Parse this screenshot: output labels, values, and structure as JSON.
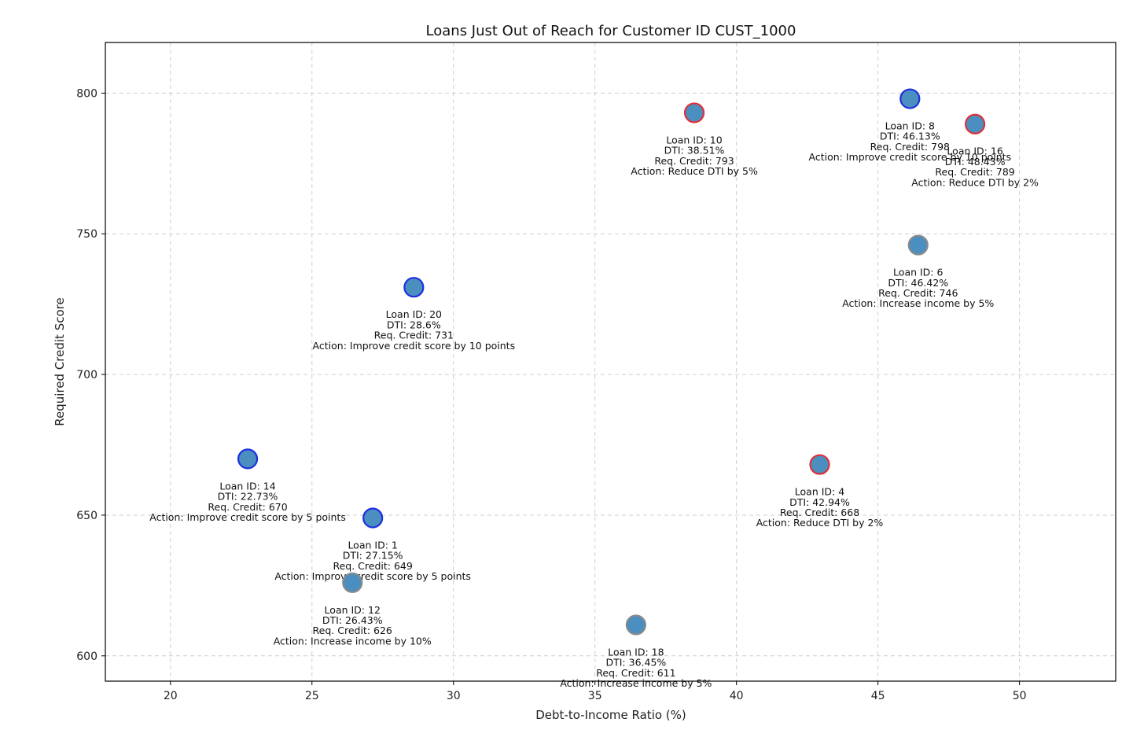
{
  "chart_data": {
    "type": "scatter",
    "title": "Loans Just Out of Reach for Customer ID CUST_1000",
    "xlabel": "Debt-to-Income Ratio (%)",
    "ylabel": "Required Credit Score",
    "xlim": [
      17.7,
      53.4
    ],
    "ylim": [
      591,
      818
    ],
    "xticks": [
      20,
      25,
      30,
      35,
      40,
      45,
      50
    ],
    "yticks": [
      600,
      650,
      700,
      750,
      800
    ],
    "grid": true,
    "colors": {
      "fill": "#4a8fbf",
      "edge_credit": "#1f2fe0",
      "edge_dti": "#e0303a",
      "edge_income": "#8a8a8a"
    },
    "points": [
      {
        "x": 22.73,
        "y": 670,
        "edge": "credit",
        "lines": [
          "Loan ID: 14",
          "DTI: 22.73%",
          "Req. Credit: 670",
          "Action: Improve credit score by 5 points"
        ]
      },
      {
        "x": 28.6,
        "y": 731,
        "edge": "credit",
        "lines": [
          "Loan ID: 20",
          "DTI: 28.6%",
          "Req. Credit: 731",
          "Action: Improve credit score by 10 points"
        ]
      },
      {
        "x": 27.15,
        "y": 649,
        "edge": "credit",
        "lines": [
          "Loan ID: 1",
          "DTI: 27.15%",
          "Req. Credit: 649",
          "Action: Improve credit score by 5 points"
        ]
      },
      {
        "x": 26.43,
        "y": 626,
        "edge": "income",
        "lines": [
          "Loan ID: 12",
          "DTI: 26.43%",
          "Req. Credit: 626",
          "Action: Increase income by 10%"
        ]
      },
      {
        "x": 36.45,
        "y": 611,
        "edge": "income",
        "lines": [
          "Loan ID: 18",
          "DTI: 36.45%",
          "Req. Credit: 611",
          "Action: Increase income by 5%"
        ]
      },
      {
        "x": 38.51,
        "y": 793,
        "edge": "dti",
        "lines": [
          "Loan ID: 10",
          "DTI: 38.51%",
          "Req. Credit: 793",
          "Action: Reduce DTI by 5%"
        ]
      },
      {
        "x": 42.94,
        "y": 668,
        "edge": "dti",
        "lines": [
          "Loan ID: 4",
          "DTI: 42.94%",
          "Req. Credit: 668",
          "Action: Reduce DTI by 2%"
        ]
      },
      {
        "x": 46.13,
        "y": 798,
        "edge": "credit",
        "lines": [
          "Loan ID: 8",
          "DTI: 46.13%",
          "Req. Credit: 798",
          "Action: Improve credit score by 10 points"
        ]
      },
      {
        "x": 46.42,
        "y": 746,
        "edge": "income",
        "lines": [
          "Loan ID: 6",
          "DTI: 46.42%",
          "Req. Credit: 746",
          "Action: Increase income by 5%"
        ]
      },
      {
        "x": 48.43,
        "y": 789,
        "edge": "dti",
        "lines": [
          "Loan ID: 16",
          "DTI: 48.43%",
          "Req. Credit: 789",
          "Action: Reduce DTI by 2%"
        ]
      }
    ]
  }
}
